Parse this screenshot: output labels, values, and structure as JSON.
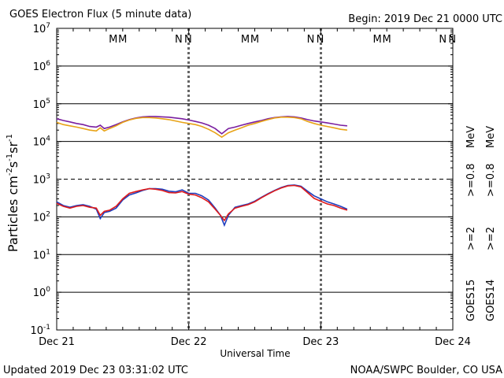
{
  "chart_data": {
    "type": "line",
    "title": "GOES Electron Flux (5 minute data)",
    "begin_label": "Begin: 2019 Dec 21 0000 UTC",
    "xlabel": "Universal Time",
    "ylabel_parts": [
      "Particles cm",
      "-2",
      "s",
      "-1",
      "sr",
      "-1"
    ],
    "x_ticks": [
      "Dec 21",
      "Dec 22",
      "Dec 23",
      "Dec 24"
    ],
    "x_unit": "days since Dec 21 0000 UTC",
    "xlim": [
      0,
      3
    ],
    "yscale": "log",
    "ylim_exp": [
      -1,
      7
    ],
    "y_tick_exponents": [
      -1,
      0,
      1,
      2,
      3,
      4,
      5,
      6,
      7
    ],
    "grid_solid_exp": [
      0,
      1,
      2,
      4,
      5,
      6
    ],
    "threshold_exp": 3,
    "day_markers": [
      {
        "M_day": [
          0.45,
          2.29,
          4.29
        ],
        "N_day": [
          0.96,
          2.8,
          4.8
        ]
      }
    ],
    "marker_labels": {
      "m": "M",
      "n": "N"
    },
    "marker_positions": [
      {
        "label": "MM",
        "x": [
          0.49,
          1.49,
          2.49
        ]
      },
      {
        "label": "NN",
        "x": [
          0.99,
          1.99,
          2.99
        ]
      }
    ],
    "series": [
      {
        "name": ">=0.8 MeV",
        "satellite": "GOES15",
        "color": "#7a1fa0",
        "x": [
          0.0,
          0.05,
          0.1,
          0.15,
          0.2,
          0.25,
          0.3,
          0.33,
          0.36,
          0.4,
          0.45,
          0.5,
          0.55,
          0.6,
          0.65,
          0.7,
          0.75,
          0.8,
          0.85,
          0.9,
          0.95,
          1.0,
          1.05,
          1.1,
          1.15,
          1.2,
          1.25,
          1.3,
          1.35,
          1.4,
          1.45,
          1.5,
          1.55,
          1.6,
          1.65,
          1.7,
          1.75,
          1.8,
          1.85,
          1.9,
          1.95,
          2.0,
          2.05,
          2.1,
          2.15,
          2.2
        ],
        "y": [
          40000,
          36000,
          33000,
          30000,
          28000,
          25000,
          24000,
          27000,
          22000,
          24000,
          28000,
          33000,
          38000,
          42000,
          45000,
          46000,
          46000,
          45000,
          44000,
          42000,
          40000,
          37000,
          34000,
          31000,
          27000,
          22000,
          16000,
          22000,
          24000,
          27000,
          30000,
          33000,
          36000,
          40000,
          43000,
          45000,
          46000,
          45000,
          42000,
          38000,
          35000,
          33000,
          31000,
          29000,
          27000,
          26000
        ]
      },
      {
        "name": ">=0.8 MeV",
        "satellite": "GOES14",
        "color": "#e8a317",
        "x": [
          0.0,
          0.05,
          0.1,
          0.15,
          0.2,
          0.25,
          0.3,
          0.33,
          0.36,
          0.4,
          0.45,
          0.5,
          0.55,
          0.6,
          0.65,
          0.7,
          0.75,
          0.8,
          0.85,
          0.9,
          0.95,
          1.0,
          1.05,
          1.1,
          1.15,
          1.2,
          1.25,
          1.3,
          1.35,
          1.4,
          1.45,
          1.5,
          1.55,
          1.6,
          1.65,
          1.7,
          1.75,
          1.8,
          1.85,
          1.9,
          1.95,
          2.0,
          2.05,
          2.1,
          2.15,
          2.2
        ],
        "y": [
          32000,
          28000,
          26000,
          24000,
          22000,
          20000,
          19000,
          23000,
          19000,
          22000,
          26000,
          32000,
          37000,
          41000,
          43000,
          43000,
          42000,
          40000,
          38000,
          35000,
          32000,
          30000,
          28000,
          25000,
          21000,
          17000,
          13000,
          17000,
          20000,
          23000,
          27000,
          30000,
          34000,
          38000,
          42000,
          44000,
          44000,
          43000,
          40000,
          34000,
          30000,
          27000,
          25000,
          23000,
          21000,
          20000
        ]
      },
      {
        "name": ">=2 MeV",
        "satellite": "GOES15",
        "color": "#1f3fbf",
        "x": [
          0.0,
          0.05,
          0.1,
          0.15,
          0.2,
          0.25,
          0.3,
          0.33,
          0.36,
          0.4,
          0.45,
          0.5,
          0.55,
          0.6,
          0.65,
          0.7,
          0.75,
          0.8,
          0.85,
          0.9,
          0.95,
          1.0,
          1.05,
          1.1,
          1.15,
          1.2,
          1.24,
          1.27,
          1.3,
          1.35,
          1.4,
          1.45,
          1.5,
          1.55,
          1.6,
          1.65,
          1.7,
          1.75,
          1.8,
          1.85,
          1.9,
          1.95,
          2.0,
          2.05,
          2.1,
          2.15,
          2.2
        ],
        "y": [
          250,
          200,
          180,
          200,
          210,
          190,
          160,
          90,
          130,
          140,
          170,
          280,
          380,
          430,
          500,
          560,
          560,
          540,
          480,
          460,
          520,
          420,
          420,
          360,
          280,
          170,
          110,
          60,
          110,
          180,
          200,
          220,
          260,
          330,
          410,
          500,
          600,
          680,
          700,
          650,
          480,
          360,
          300,
          250,
          220,
          190,
          160
        ]
      },
      {
        "name": ">=2 MeV",
        "satellite": "GOES14",
        "color": "#e01b1b",
        "x": [
          0.0,
          0.05,
          0.1,
          0.15,
          0.2,
          0.25,
          0.3,
          0.33,
          0.36,
          0.4,
          0.45,
          0.5,
          0.55,
          0.6,
          0.65,
          0.7,
          0.75,
          0.8,
          0.85,
          0.9,
          0.95,
          1.0,
          1.05,
          1.1,
          1.15,
          1.2,
          1.24,
          1.27,
          1.3,
          1.35,
          1.4,
          1.45,
          1.5,
          1.55,
          1.6,
          1.65,
          1.7,
          1.75,
          1.8,
          1.85,
          1.9,
          1.95,
          2.0,
          2.05,
          2.1,
          2.15,
          2.2
        ],
        "y": [
          230,
          190,
          170,
          190,
          200,
          180,
          170,
          110,
          140,
          150,
          190,
          300,
          420,
          470,
          520,
          560,
          540,
          500,
          440,
          430,
          470,
          400,
          380,
          320,
          250,
          160,
          110,
          80,
          120,
          170,
          190,
          210,
          250,
          320,
          400,
          490,
          580,
          660,
          680,
          620,
          440,
          310,
          260,
          220,
          200,
          170,
          150
        ]
      }
    ],
    "legend_groups": [
      {
        "satellite": "GOES15",
        "labels": [
          ">=2",
          ">=0.8"
        ],
        "colors": [
          "#1f3fbf",
          "#7a1fa0"
        ]
      },
      {
        "satellite": "GOES14",
        "labels": [
          ">=2",
          ">=0.8"
        ],
        "colors": [
          "#e01b1b",
          "#e8a317"
        ]
      }
    ],
    "legend_unit": "MeV"
  },
  "footer": {
    "updated": "Updated 2019 Dec 23 03:31:02 UTC",
    "credit": "NOAA/SWPC Boulder, CO USA"
  }
}
